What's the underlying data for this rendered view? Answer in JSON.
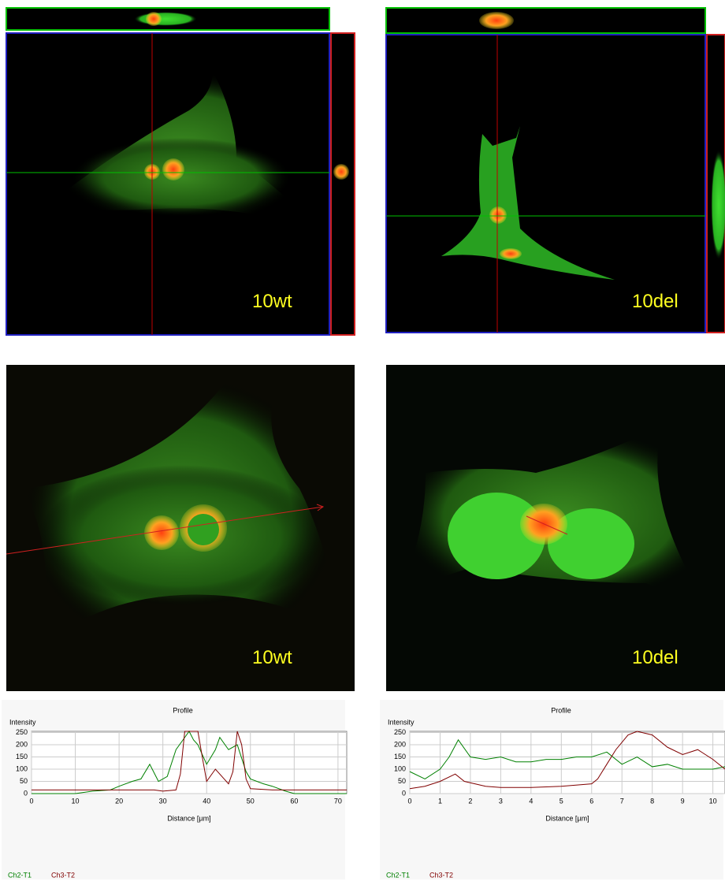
{
  "panels": [
    {
      "label": "10wt"
    },
    {
      "label": "10del"
    },
    {
      "label": "10wt"
    },
    {
      "label": "10del"
    }
  ],
  "chart_data": [
    {
      "type": "line",
      "title": "Profile",
      "y_label": "Intensity",
      "x_label": "Distance [µm]",
      "xlim": [
        0,
        72
      ],
      "ylim": [
        0,
        255
      ],
      "xticks": [
        0,
        10,
        20,
        30,
        40,
        50,
        60,
        70
      ],
      "yticks": [
        0,
        50,
        100,
        150,
        200,
        250
      ],
      "grid": true,
      "series": [
        {
          "name": "Ch2-T1",
          "color": "#008000",
          "x": [
            0,
            10,
            14,
            18,
            20,
            23,
            25,
            27,
            29,
            31,
            33,
            35,
            36,
            37,
            38,
            40,
            42,
            43,
            45,
            47,
            49,
            50,
            53,
            55,
            58,
            60,
            65,
            72
          ],
          "values": [
            0,
            0,
            10,
            15,
            30,
            50,
            60,
            120,
            50,
            70,
            180,
            230,
            255,
            220,
            200,
            120,
            180,
            230,
            180,
            200,
            90,
            60,
            40,
            30,
            10,
            0,
            0,
            0
          ]
        },
        {
          "name": "Ch3-T2",
          "color": "#800000",
          "x": [
            0,
            10,
            20,
            28,
            30,
            33,
            34,
            35,
            37,
            38,
            39,
            40,
            42,
            44,
            45,
            46,
            47,
            48,
            49,
            50,
            55,
            60,
            65,
            72
          ],
          "values": [
            15,
            15,
            15,
            15,
            10,
            15,
            80,
            255,
            255,
            255,
            150,
            50,
            100,
            60,
            40,
            90,
            255,
            200,
            60,
            20,
            15,
            15,
            15,
            15
          ]
        }
      ]
    },
    {
      "type": "line",
      "title": "Profile",
      "y_label": "Intensity",
      "x_label": "Distance [µm]",
      "xlim": [
        0,
        10.4
      ],
      "ylim": [
        0,
        255
      ],
      "xticks": [
        0,
        1,
        2,
        3,
        4,
        5,
        6,
        7,
        8,
        9,
        10
      ],
      "yticks": [
        0,
        50,
        100,
        150,
        200,
        250
      ],
      "grid": true,
      "series": [
        {
          "name": "Ch2-T1",
          "color": "#008000",
          "x": [
            0,
            0.5,
            1,
            1.3,
            1.6,
            2,
            2.5,
            3,
            3.5,
            4,
            4.5,
            5,
            5.5,
            6,
            6.5,
            7,
            7.5,
            8,
            8.5,
            9,
            9.5,
            10,
            10.4
          ],
          "values": [
            90,
            60,
            100,
            150,
            220,
            150,
            140,
            150,
            130,
            130,
            140,
            140,
            150,
            150,
            170,
            120,
            150,
            110,
            120,
            100,
            100,
            100,
            110
          ]
        },
        {
          "name": "Ch3-T2",
          "color": "#800000",
          "x": [
            0,
            0.5,
            1,
            1.5,
            1.8,
            2.5,
            3,
            4,
            5,
            6,
            6.2,
            6.5,
            6.8,
            7.2,
            7.5,
            8,
            8.5,
            9,
            9.5,
            10,
            10.4
          ],
          "values": [
            20,
            30,
            50,
            80,
            50,
            30,
            25,
            25,
            30,
            40,
            60,
            120,
            180,
            240,
            255,
            240,
            190,
            160,
            180,
            140,
            100
          ]
        }
      ]
    }
  ]
}
